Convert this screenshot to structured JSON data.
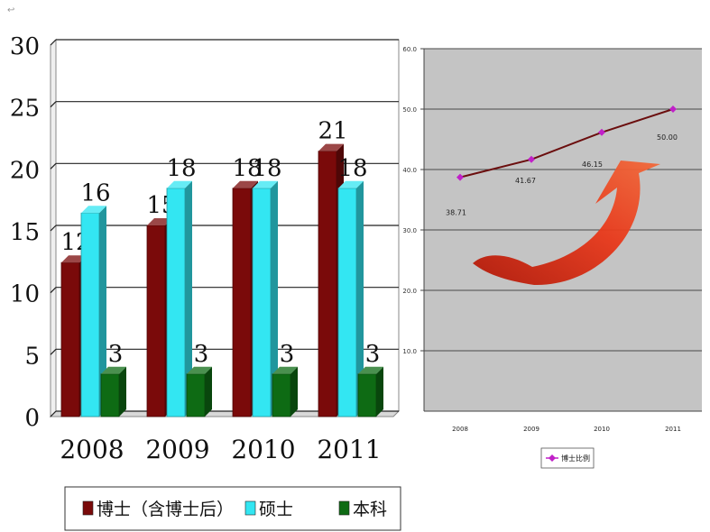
{
  "page_mark": "↩",
  "chart_data": [
    {
      "type": "bar",
      "categories": [
        "2008",
        "2009",
        "2010",
        "2011"
      ],
      "series": [
        {
          "name": "博士（含博士后）",
          "values": [
            12,
            15,
            18,
            21
          ],
          "color": "#7a0a0a"
        },
        {
          "name": "硕士",
          "values": [
            16,
            18,
            18,
            18
          ],
          "color": "#33e6f2"
        },
        {
          "name": "本科",
          "values": [
            3,
            3,
            3,
            3
          ],
          "color": "#0e6b14"
        }
      ],
      "yticks": [
        "0",
        "5",
        "10",
        "15",
        "20",
        "25",
        "30"
      ],
      "ylim": [
        0,
        30
      ],
      "grid": true,
      "legend_position": "bottom",
      "style": "3d"
    },
    {
      "type": "line",
      "x": [
        "2008",
        "2009",
        "2010",
        "2011"
      ],
      "xtick_labels": [
        "2008",
        "2009",
        "2010",
        "2011"
      ],
      "series": [
        {
          "name": "博士比例",
          "values": [
            38.71,
            41.67,
            46.15,
            50.0
          ],
          "color": "#c020c8",
          "line_color": "#6b0e0e"
        }
      ],
      "point_labels": [
        "38.71",
        "41.67",
        "46.15",
        "50.00"
      ],
      "yticks": [
        "10.0",
        "20.0",
        "30.0",
        "40.0",
        "50.0",
        "60.0"
      ],
      "ylim": [
        10,
        60
      ],
      "grid": true,
      "legend_position": "bottom",
      "background": "#c4c4c4",
      "annotation": "curved red arrow pointing up-right"
    }
  ]
}
